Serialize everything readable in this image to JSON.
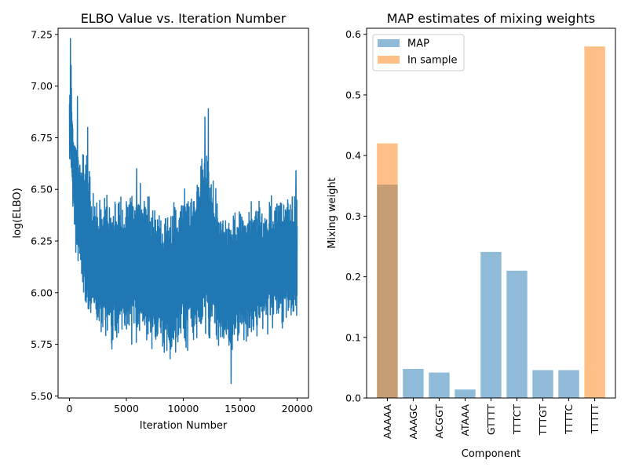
{
  "chart_data": [
    {
      "type": "line",
      "title": "ELBO Value vs. Iteration Number",
      "xlabel": "Iteration Number",
      "ylabel": "log(ELBO)",
      "xlim": [
        -1000,
        21000
      ],
      "ylim": [
        5.49,
        7.28
      ],
      "xticks": [
        0,
        5000,
        10000,
        15000,
        20000
      ],
      "yticks": [
        5.5,
        5.75,
        6.0,
        6.25,
        6.5,
        6.75,
        7.0,
        7.25
      ],
      "ytick_labels": [
        "5.50",
        "5.75",
        "6.00",
        "6.25",
        "6.50",
        "6.75",
        "7.00",
        "7.25"
      ],
      "color": "#1f77b4",
      "x_range": [
        0,
        20000
      ],
      "envelope": [
        {
          "x": 0,
          "lo": 6.6,
          "hi": 7.05
        },
        {
          "x": 100,
          "lo": 6.45,
          "hi": 7.23
        },
        {
          "x": 300,
          "lo": 6.35,
          "hi": 6.9
        },
        {
          "x": 600,
          "lo": 6.1,
          "hi": 6.85
        },
        {
          "x": 1000,
          "lo": 5.98,
          "hi": 6.75
        },
        {
          "x": 1500,
          "lo": 5.85,
          "hi": 6.8
        },
        {
          "x": 2000,
          "lo": 5.8,
          "hi": 6.5
        },
        {
          "x": 3000,
          "lo": 5.75,
          "hi": 6.55
        },
        {
          "x": 4000,
          "lo": 5.7,
          "hi": 6.5
        },
        {
          "x": 5000,
          "lo": 5.72,
          "hi": 6.55
        },
        {
          "x": 6000,
          "lo": 5.7,
          "hi": 6.62
        },
        {
          "x": 7000,
          "lo": 5.65,
          "hi": 6.5
        },
        {
          "x": 8000,
          "lo": 5.65,
          "hi": 6.45
        },
        {
          "x": 9000,
          "lo": 5.6,
          "hi": 6.48
        },
        {
          "x": 10000,
          "lo": 5.7,
          "hi": 6.55
        },
        {
          "x": 11000,
          "lo": 5.65,
          "hi": 6.6
        },
        {
          "x": 12000,
          "lo": 5.7,
          "hi": 6.85
        },
        {
          "x": 13000,
          "lo": 5.68,
          "hi": 6.5
        },
        {
          "x": 14000,
          "lo": 5.62,
          "hi": 6.45
        },
        {
          "x": 15000,
          "lo": 5.68,
          "hi": 6.5
        },
        {
          "x": 16000,
          "lo": 5.7,
          "hi": 6.48
        },
        {
          "x": 17000,
          "lo": 5.75,
          "hi": 6.5
        },
        {
          "x": 18000,
          "lo": 5.78,
          "hi": 6.52
        },
        {
          "x": 19000,
          "lo": 5.8,
          "hi": 6.5
        },
        {
          "x": 20000,
          "lo": 5.8,
          "hi": 6.55
        }
      ],
      "spikes": [
        {
          "x": 80,
          "y": 7.23
        },
        {
          "x": 150,
          "y": 7.1
        },
        {
          "x": 700,
          "y": 6.95
        },
        {
          "x": 1600,
          "y": 6.8
        },
        {
          "x": 5900,
          "y": 6.6
        },
        {
          "x": 11900,
          "y": 6.85
        },
        {
          "x": 12200,
          "y": 6.89
        },
        {
          "x": 14200,
          "y": 5.56
        },
        {
          "x": 19900,
          "y": 6.59
        }
      ]
    },
    {
      "type": "bar",
      "title": "MAP estimates of mixing weights",
      "xlabel": "Component",
      "ylabel": "Mixing weight",
      "ylim": [
        0,
        0.61
      ],
      "yticks": [
        0.0,
        0.1,
        0.2,
        0.3,
        0.4,
        0.5,
        0.6
      ],
      "categories": [
        "AAAAA",
        "AAAGC",
        "ACGGT",
        "ATAAA",
        "GTTTT",
        "TTTCT",
        "TTTGT",
        "TTTTC",
        "TTTTT"
      ],
      "series": [
        {
          "name": "MAP",
          "color": "#1f77b4",
          "alpha": 0.5,
          "values": [
            0.352,
            0.048,
            0.042,
            0.014,
            0.241,
            0.21,
            0.046,
            0.046,
            0
          ]
        },
        {
          "name": "In sample",
          "color": "#ff7f0e",
          "alpha": 0.5,
          "values": [
            0.42,
            0,
            0,
            0,
            0,
            0,
            0,
            0,
            0.58
          ]
        }
      ],
      "legend_position": "top-left"
    }
  ]
}
